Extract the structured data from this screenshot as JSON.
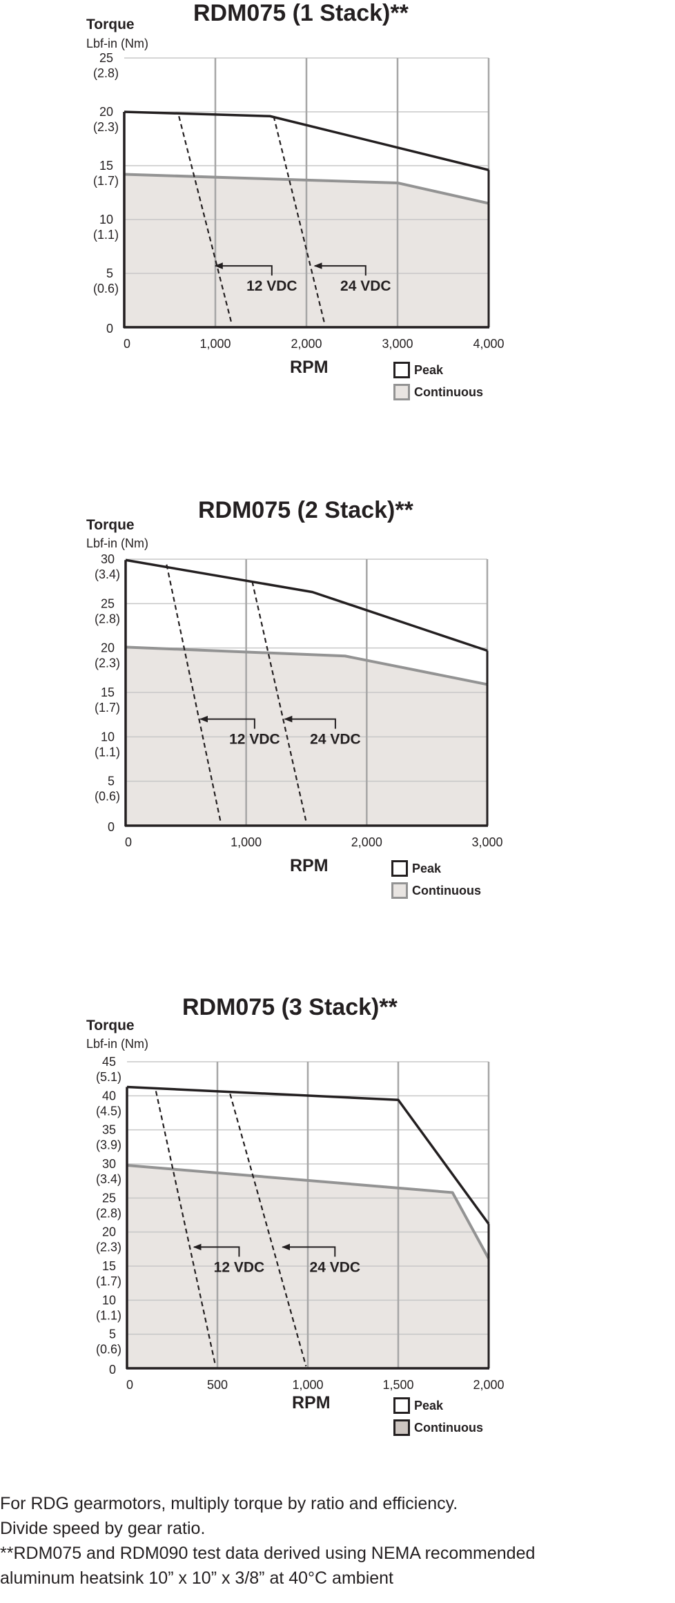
{
  "chart_data": [
    {
      "type": "line",
      "title": "RDM075 (1 Stack)**",
      "ylabel": "Torque",
      "ylabel_unit": "Lbf-in (Nm)",
      "xlabel": "RPM",
      "xlim": [
        0,
        4000
      ],
      "ylim": [
        0,
        25
      ],
      "x_ticks": [
        0,
        1000,
        2000,
        3000,
        4000
      ],
      "x_tick_labels": [
        "0",
        "1,000",
        "2,000",
        "3,000",
        "4,000"
      ],
      "y_ticks": [
        0,
        5,
        10,
        15,
        20,
        25
      ],
      "y_tick_labels": [
        [
          "0",
          ""
        ],
        [
          "5",
          "(0.6)"
        ],
        [
          "10",
          "(1.1)"
        ],
        [
          "15",
          "(1.7)"
        ],
        [
          "20",
          "(2.3)"
        ],
        [
          "25",
          "(2.8)"
        ]
      ],
      "grid": true,
      "legend": "bottom-right",
      "series": [
        {
          "name": "Peak",
          "color": "#231f20",
          "points": [
            [
              0,
              20
            ],
            [
              1600,
              19.6
            ],
            [
              4000,
              14.6
            ]
          ]
        },
        {
          "name": "Continuous",
          "color": "#939393",
          "fill": "#e9e5e2",
          "points": [
            [
              0,
              14.2
            ],
            [
              3000,
              13.4
            ],
            [
              4000,
              11.5
            ]
          ]
        }
      ],
      "voltage_lines": [
        {
          "label": "12 VDC",
          "points": [
            [
              600,
              19.6
            ],
            [
              1180,
              0.3
            ]
          ],
          "arrow_y": 5.7,
          "arrow_from": 1620,
          "arrow_to": 1000
        },
        {
          "label": "24 VDC",
          "points": [
            [
              1640,
              19.6
            ],
            [
              2200,
              0.3
            ]
          ],
          "arrow_y": 5.7,
          "arrow_from": 2650,
          "arrow_to": 2090
        }
      ]
    },
    {
      "type": "line",
      "title": "RDM075 (2 Stack)**",
      "ylabel": "Torque",
      "ylabel_unit": "Lbf-in (Nm)",
      "xlabel": "RPM",
      "xlim": [
        0,
        3000
      ],
      "ylim": [
        0,
        30
      ],
      "x_ticks": [
        0,
        1000,
        2000,
        3000
      ],
      "x_tick_labels": [
        "0",
        "1,000",
        "2,000",
        "3,000"
      ],
      "y_ticks": [
        0,
        5,
        10,
        15,
        20,
        25,
        30
      ],
      "y_tick_labels": [
        [
          "0",
          ""
        ],
        [
          "5",
          "(0.6)"
        ],
        [
          "10",
          "(1.1)"
        ],
        [
          "15",
          "(1.7)"
        ],
        [
          "20",
          "(2.3)"
        ],
        [
          "25",
          "(2.8)"
        ],
        [
          "30",
          "(3.4)"
        ]
      ],
      "grid": true,
      "legend": "bottom-right",
      "series": [
        {
          "name": "Peak",
          "color": "#231f20",
          "points": [
            [
              0,
              29.9
            ],
            [
              1550,
              26.3
            ],
            [
              3000,
              19.7
            ]
          ]
        },
        {
          "name": "Continuous",
          "color": "#939393",
          "fill": "#e9e5e2",
          "points": [
            [
              0,
              20.1
            ],
            [
              1820,
              19.1
            ],
            [
              3000,
              15.9
            ]
          ]
        }
      ],
      "voltage_lines": [
        {
          "label": "12 VDC",
          "points": [
            [
              340,
              29.4
            ],
            [
              790,
              0.3
            ]
          ],
          "arrow_y": 12.0,
          "arrow_from": 1070,
          "arrow_to": 620
        },
        {
          "label": "24 VDC",
          "points": [
            [
              1050,
              27.5
            ],
            [
              1500,
              0.3
            ]
          ],
          "arrow_y": 12.0,
          "arrow_from": 1740,
          "arrow_to": 1320
        }
      ]
    },
    {
      "type": "line",
      "title": "RDM075 (3 Stack)**",
      "ylabel": "Torque",
      "ylabel_unit": "Lbf-in (Nm)",
      "xlabel": "RPM",
      "xlim": [
        0,
        2000
      ],
      "ylim": [
        0,
        45
      ],
      "x_ticks": [
        0,
        500,
        1000,
        1500,
        2000
      ],
      "x_tick_labels": [
        "0",
        "500",
        "1,000",
        "1,500",
        "2,000"
      ],
      "y_ticks": [
        0,
        5,
        10,
        15,
        20,
        25,
        30,
        35,
        40,
        45
      ],
      "y_tick_labels": [
        [
          "0",
          ""
        ],
        [
          "5",
          "(0.6)"
        ],
        [
          "10",
          "(1.1)"
        ],
        [
          "15",
          "(1.7)"
        ],
        [
          "20",
          "(2.3)"
        ],
        [
          "25",
          "(2.8)"
        ],
        [
          "30",
          "(3.4)"
        ],
        [
          "35",
          "(3.9)"
        ],
        [
          "40",
          "(4.5)"
        ],
        [
          "45",
          "(5.1)"
        ]
      ],
      "grid": true,
      "legend": "bottom-right",
      "series": [
        {
          "name": "Peak",
          "color": "#231f20",
          "points": [
            [
              0,
              41.3
            ],
            [
              1500,
              39.4
            ],
            [
              2000,
              21.2
            ]
          ]
        },
        {
          "name": "Continuous",
          "color": "#939393",
          "fill": "#e9e5e2",
          "points": [
            [
              0,
              29.8
            ],
            [
              1800,
              25.8
            ],
            [
              2000,
              16.1
            ]
          ]
        }
      ],
      "voltage_lines": [
        {
          "label": "12 VDC",
          "points": [
            [
              160,
              40.7
            ],
            [
              490,
              0.3
            ]
          ],
          "arrow_y": 17.8,
          "arrow_from": 620,
          "arrow_to": 370
        },
        {
          "label": "24 VDC",
          "points": [
            [
              570,
              40.3
            ],
            [
              990,
              0.3
            ]
          ],
          "arrow_y": 17.8,
          "arrow_from": 1150,
          "arrow_to": 860
        }
      ]
    }
  ],
  "footnotes": [
    "For RDG gearmotors, multiply torque by ratio and efficiency.",
    "Divide speed by gear ratio.",
    "**RDM075 and RDM090 test data derived using NEMA recommended",
    "aluminum heatsink 10” x 10” x 3/8” at 40°C ambient"
  ]
}
